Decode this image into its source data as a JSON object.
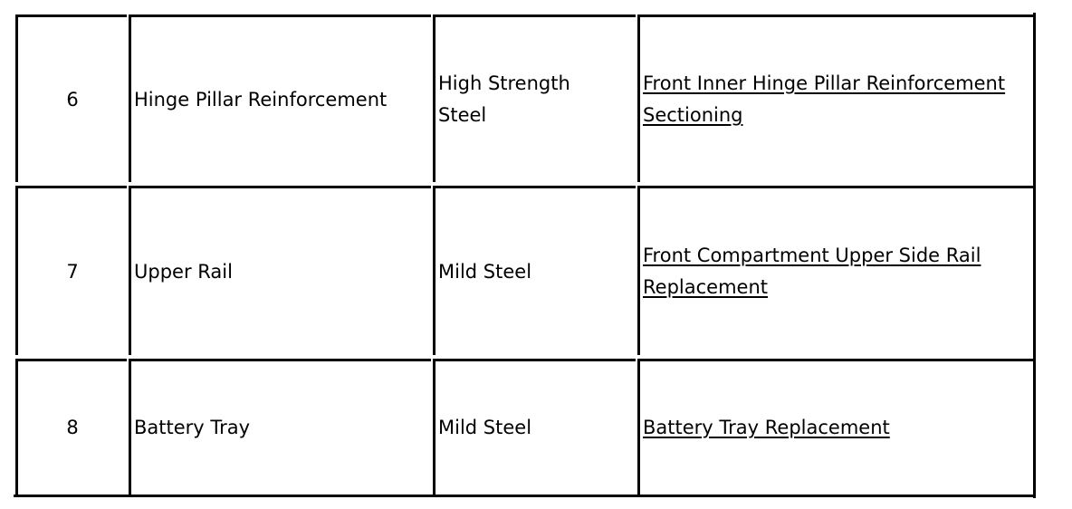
{
  "rows": [
    {
      "number": "6",
      "part": "Hinge Pillar Reinforcement",
      "material": "High Strength Steel",
      "procedure": "Front Inner Hinge Pillar Reinforcement Sectioning"
    },
    {
      "number": "7",
      "part": "Upper Rail",
      "material": "Mild Steel",
      "procedure": "Front Compartment Upper Side Rail Replacement"
    },
    {
      "number": "8",
      "part": "Battery Tray",
      "material": "Mild Steel",
      "procedure": "Battery Tray Replacement"
    }
  ]
}
